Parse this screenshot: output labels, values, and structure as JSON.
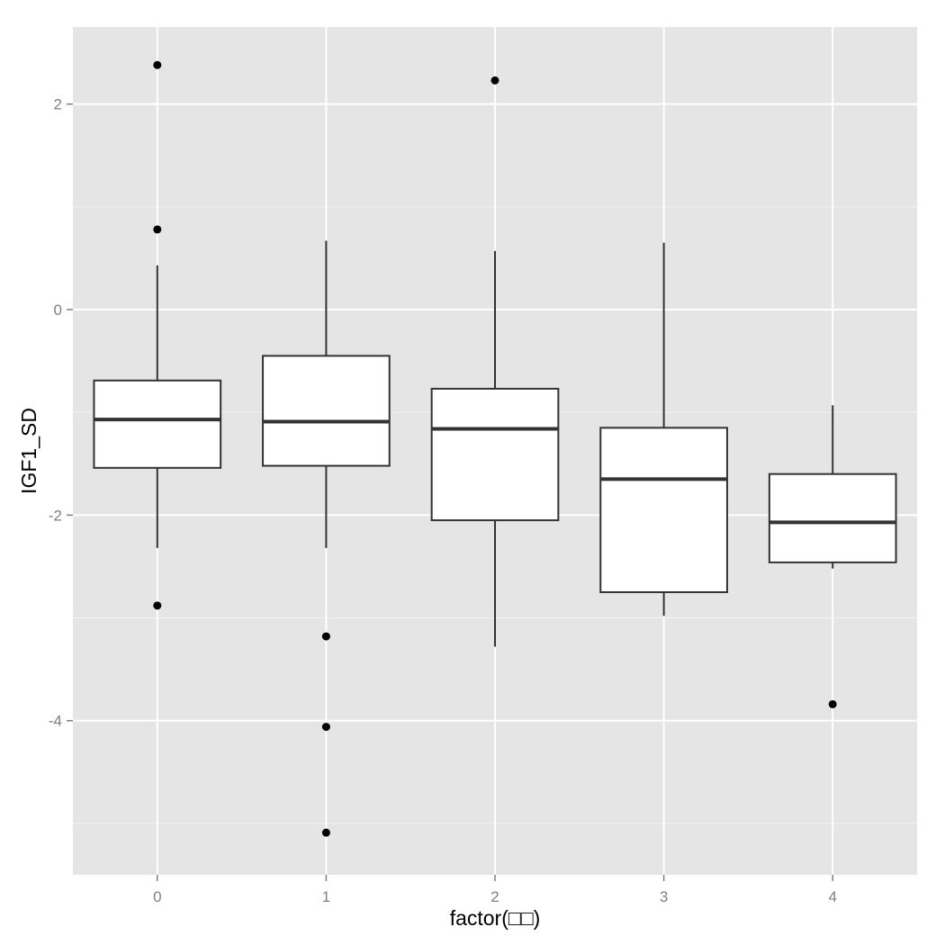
{
  "chart_data": {
    "type": "boxplot",
    "title": "",
    "xlabel": "factor(□□)",
    "ylabel": "IGF1_SD",
    "categories": [
      "0",
      "1",
      "2",
      "3",
      "4"
    ],
    "ylim": [
      -5.5,
      2.75
    ],
    "yticks": [
      2,
      0,
      -2,
      -4
    ],
    "yticks_labels": [
      "2",
      "0",
      "-2",
      "-4"
    ],
    "minor_yticks": [
      1,
      -1,
      -3,
      -5
    ],
    "grid": true,
    "boxes": [
      {
        "category": "0",
        "whisker_low": -2.32,
        "q1": -1.54,
        "median": -1.07,
        "q3": -0.69,
        "whisker_high": 0.43,
        "outliers": [
          2.38,
          0.78,
          -2.88
        ]
      },
      {
        "category": "1",
        "whisker_low": -2.32,
        "q1": -1.52,
        "median": -1.09,
        "q3": -0.45,
        "whisker_high": 0.67,
        "outliers": [
          -3.18,
          -4.06,
          -5.09
        ]
      },
      {
        "category": "2",
        "whisker_low": -3.28,
        "q1": -2.05,
        "median": -1.16,
        "q3": -0.77,
        "whisker_high": 0.57,
        "outliers": [
          2.23
        ]
      },
      {
        "category": "3",
        "whisker_low": -2.98,
        "q1": -2.75,
        "median": -1.65,
        "q3": -1.15,
        "whisker_high": 0.65,
        "outliers": []
      },
      {
        "category": "4",
        "whisker_low": -2.52,
        "q1": -2.46,
        "median": -2.07,
        "q3": -1.6,
        "whisker_high": -0.93,
        "outliers": [
          -3.84
        ]
      }
    ],
    "colors": {
      "panel_background": "#e5e5e5",
      "grid_major": "#ffffff",
      "grid_minor": "#f2f2f2",
      "box_fill": "#ffffff",
      "box_line": "#333333",
      "outlier": "#000000"
    }
  }
}
